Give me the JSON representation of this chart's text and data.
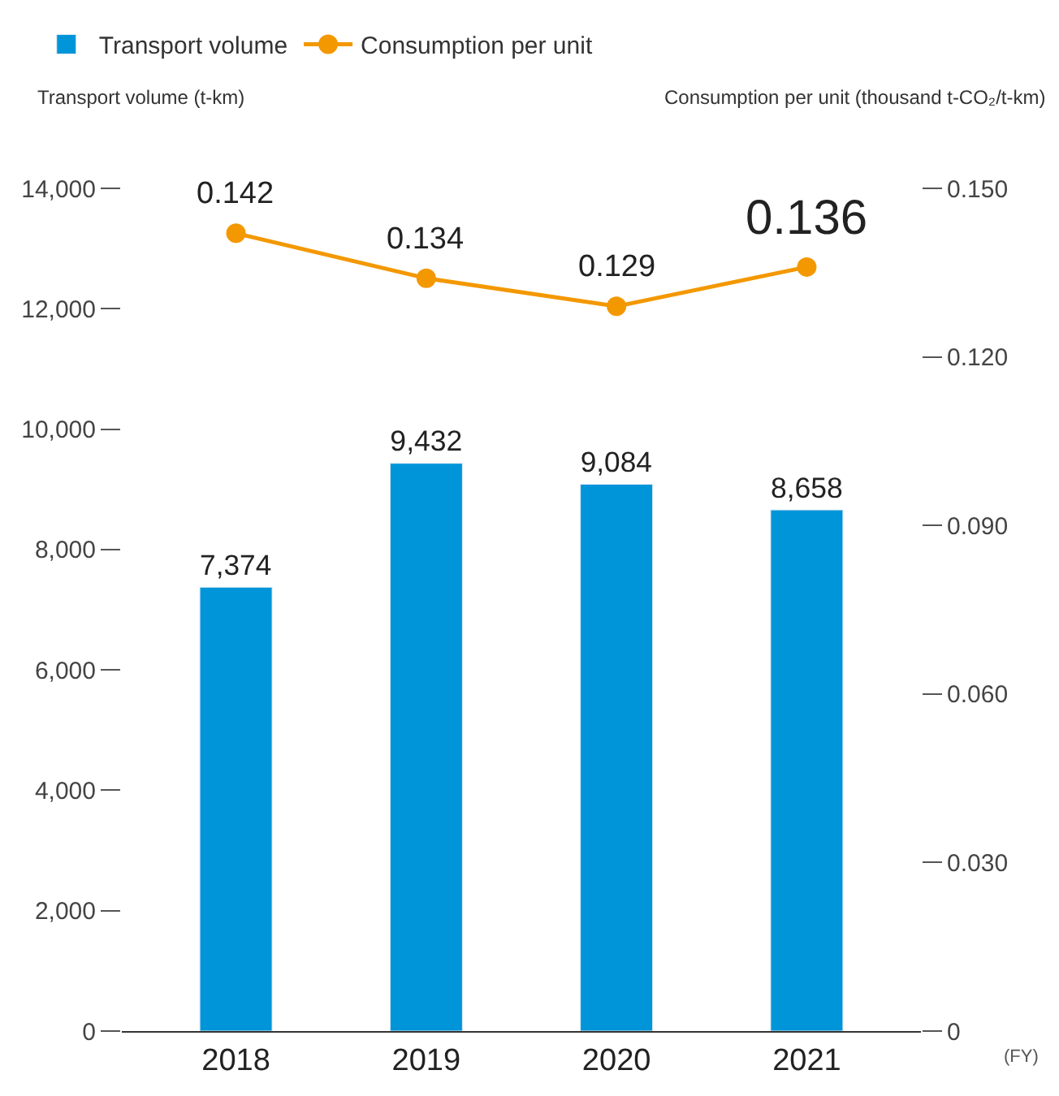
{
  "chart_data": {
    "type": "bar",
    "xlabel": "(FY)",
    "ylabel": "Transport volume (t-km)",
    "y2label": "Consumption per unit (thousand t-CO₂/t-km)",
    "categories": [
      "2018",
      "2019",
      "2020",
      "2021"
    ],
    "series": [
      {
        "name": "Transport volume",
        "color": "#0095d9",
        "values": [
          7374,
          9432,
          9084,
          8658
        ],
        "value_labels": [
          "7,374",
          "9,432",
          "9,084",
          "8,658"
        ]
      },
      {
        "name": "Consumption per unit",
        "type": "line",
        "axis": "y2",
        "color": "#f39800",
        "marker": "circle",
        "line_style": "solid",
        "values": [
          0.142,
          0.134,
          0.129,
          0.136
        ],
        "value_labels": [
          "0.142",
          "0.134",
          "0.129",
          "0.136"
        ]
      }
    ],
    "ylim": [
      0,
      14000
    ],
    "yticks": [
      {
        "value": 0,
        "label": "0"
      },
      {
        "value": 2000,
        "label": "2,000"
      },
      {
        "value": 4000,
        "label": "4,000"
      },
      {
        "value": 6000,
        "label": "6,000"
      },
      {
        "value": 8000,
        "label": "8,000"
      },
      {
        "value": 10000,
        "label": "10,000"
      },
      {
        "value": 12000,
        "label": "12,000"
      },
      {
        "value": 14000,
        "label": "14,000"
      }
    ],
    "y2lim": [
      0,
      0.15
    ],
    "y2ticks": [
      {
        "value": 0,
        "label": "0"
      },
      {
        "value": 0.03,
        "label": "0.030"
      },
      {
        "value": 0.06,
        "label": "0.060"
      },
      {
        "value": 0.09,
        "label": "0.090"
      },
      {
        "value": 0.12,
        "label": "0.120"
      },
      {
        "value": 0.15,
        "label": "0.150"
      }
    ],
    "legend": "top left"
  }
}
